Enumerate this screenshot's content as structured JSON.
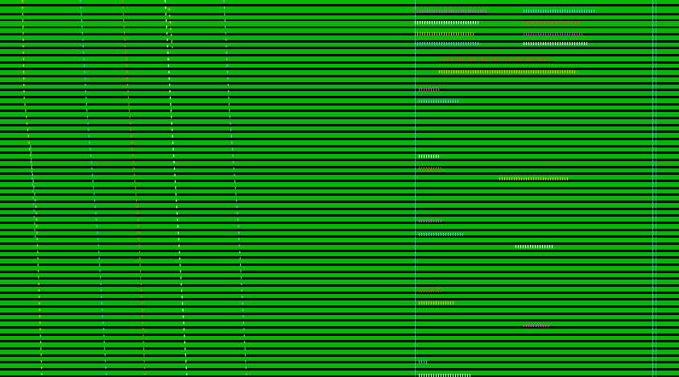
{
  "screen": {
    "background": "#000000",
    "stripe_color": "#00b800",
    "accent_colors": [
      "#ff33ff",
      "#66ccff",
      "#ffffff",
      "#ff3333",
      "#ffcc00"
    ],
    "description_visible_text": ""
  },
  "traces": {
    "colors": [
      "#ffcc00",
      "#33ccff",
      "#ff6633",
      "#ffffff",
      "#cc99ff"
    ]
  },
  "dividers": {
    "colors": [
      "#66ccff",
      "#66ccff"
    ]
  }
}
